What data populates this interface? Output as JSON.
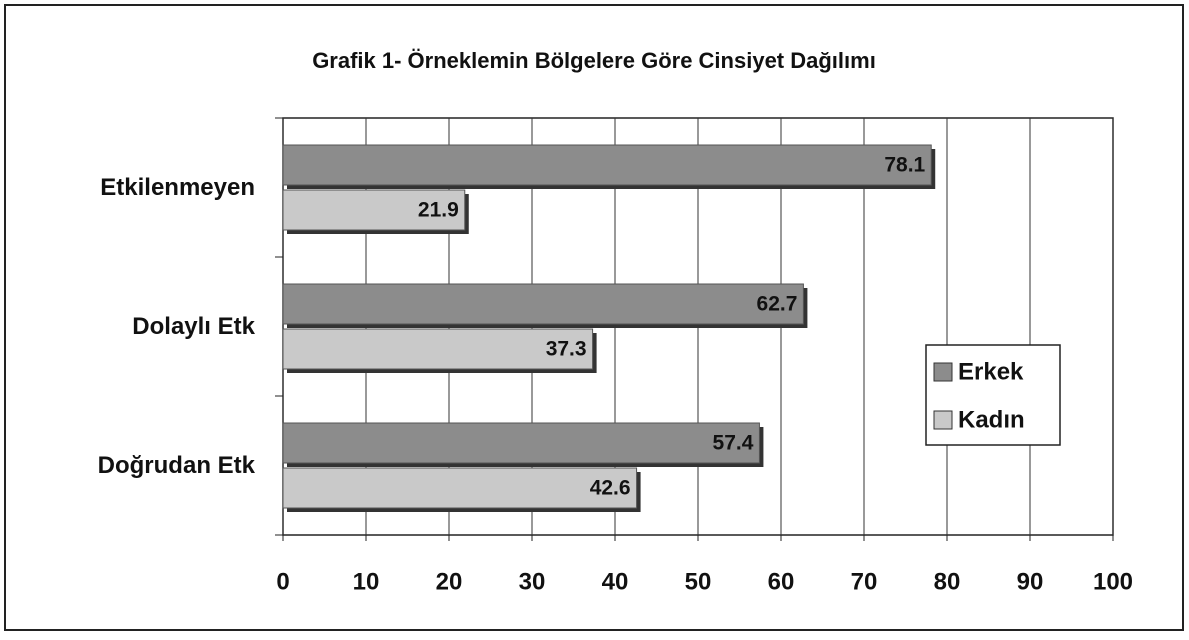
{
  "chart_data": {
    "type": "bar",
    "orientation": "horizontal",
    "title": "Grafik 1- Örneklemin Bölgelere Göre Cinsiyet Dağılımı",
    "categories": [
      "Etkilenmeyen",
      "Dolaylı Etk",
      "Doğrudan Etk"
    ],
    "series": [
      {
        "name": "Erkek",
        "color": "#8c8c8c",
        "values": [
          78.1,
          62.7,
          57.4
        ]
      },
      {
        "name": "Kadın",
        "color": "#c9c9c9",
        "values": [
          21.9,
          37.3,
          42.6
        ]
      }
    ],
    "xlim": [
      0,
      100
    ],
    "xticks": [
      0,
      10,
      20,
      30,
      40,
      50,
      60,
      70,
      80,
      90,
      100
    ],
    "grid": true,
    "legend": "right"
  }
}
